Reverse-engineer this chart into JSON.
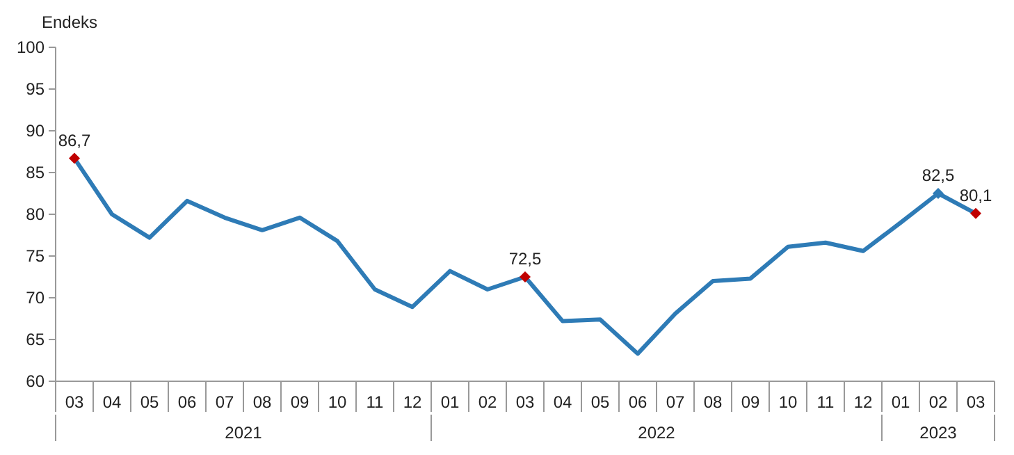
{
  "chart_data": {
    "type": "line",
    "ylabel": "Endeks",
    "categories": [
      "03",
      "04",
      "05",
      "06",
      "07",
      "08",
      "09",
      "10",
      "11",
      "12",
      "01",
      "02",
      "03",
      "04",
      "05",
      "06",
      "07",
      "08",
      "09",
      "10",
      "11",
      "12",
      "01",
      "02",
      "03"
    ],
    "series": [
      {
        "color": "#2e7bb6",
        "marker": "none",
        "values": [
          86.7,
          80.0,
          77.2,
          81.6,
          79.6,
          78.1,
          79.6,
          76.8,
          71.0,
          68.9,
          73.2,
          71.0,
          72.5,
          67.2,
          67.4,
          63.3,
          68.1,
          72.0,
          72.3,
          76.1,
          76.6,
          75.6,
          79.0,
          82.5,
          80.1
        ]
      },
      {
        "type": "scatter",
        "marker": "diamond",
        "color": "#c00000",
        "values": [
          86.7,
          null,
          null,
          null,
          null,
          null,
          null,
          null,
          null,
          null,
          null,
          null,
          72.5,
          null,
          null,
          null,
          null,
          null,
          null,
          null,
          null,
          null,
          null,
          82.5,
          80.1
        ],
        "value_labels": [
          "86,7",
          null,
          null,
          null,
          null,
          null,
          null,
          null,
          null,
          null,
          null,
          null,
          "72,5",
          null,
          null,
          null,
          null,
          null,
          null,
          null,
          null,
          null,
          null,
          "82,5",
          "80,1"
        ],
        "colors": [
          "#c00000",
          null,
          null,
          null,
          null,
          null,
          null,
          null,
          null,
          null,
          null,
          null,
          "#c00000",
          null,
          null,
          null,
          null,
          null,
          null,
          null,
          null,
          null,
          null,
          "#2e7bb6",
          "#c00000"
        ]
      }
    ],
    "ylim": [
      60,
      100
    ],
    "yticks": [
      60,
      65,
      70,
      75,
      80,
      85,
      90,
      95,
      100
    ],
    "line_style": "solid",
    "annotations": [
      "2021",
      "2022",
      "2023"
    ]
  }
}
